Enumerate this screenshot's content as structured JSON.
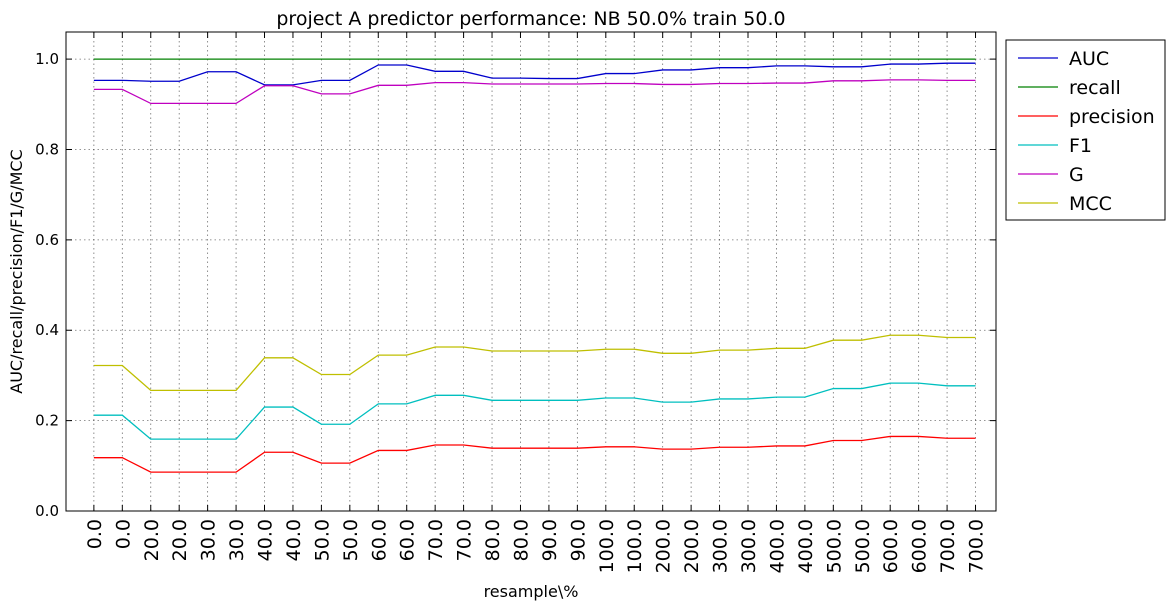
{
  "chart_data": {
    "type": "line",
    "title": "project A predictor performance: NB 50.0% train 50.0",
    "xlabel": "resample\\%",
    "ylabel": "AUC/recall/precision/F1/G/MCC",
    "ylim": [
      0.0,
      1.06
    ],
    "yticks": [
      "0.0",
      "0.2",
      "0.4",
      "0.6",
      "0.8",
      "1.0"
    ],
    "categories": [
      "0.0",
      "0.0",
      "20.0",
      "20.0",
      "30.0",
      "30.0",
      "40.0",
      "40.0",
      "50.0",
      "50.0",
      "60.0",
      "60.0",
      "70.0",
      "70.0",
      "80.0",
      "80.0",
      "90.0",
      "90.0",
      "100.0",
      "100.0",
      "200.0",
      "200.0",
      "300.0",
      "300.0",
      "400.0",
      "400.0",
      "500.0",
      "500.0",
      "600.0",
      "600.0",
      "700.0",
      "700.0"
    ],
    "grid": true,
    "legend_position": "outside-right-top",
    "series": [
      {
        "name": "AUC",
        "color": "#0000cc",
        "values": [
          0.953,
          0.953,
          0.951,
          0.951,
          0.972,
          0.972,
          0.943,
          0.943,
          0.953,
          0.953,
          0.987,
          0.987,
          0.973,
          0.973,
          0.958,
          0.958,
          0.957,
          0.957,
          0.968,
          0.968,
          0.976,
          0.976,
          0.981,
          0.981,
          0.985,
          0.985,
          0.983,
          0.983,
          0.989,
          0.989,
          0.991,
          0.991
        ]
      },
      {
        "name": "recall",
        "color": "#008000",
        "values": [
          1.0,
          1.0,
          1.0,
          1.0,
          1.0,
          1.0,
          1.0,
          1.0,
          1.0,
          1.0,
          1.0,
          1.0,
          1.0,
          1.0,
          1.0,
          1.0,
          1.0,
          1.0,
          1.0,
          1.0,
          1.0,
          1.0,
          1.0,
          1.0,
          1.0,
          1.0,
          1.0,
          1.0,
          1.0,
          1.0,
          1.0,
          1.0
        ]
      },
      {
        "name": "precision",
        "color": "#ff0000",
        "values": [
          0.118,
          0.118,
          0.086,
          0.086,
          0.086,
          0.086,
          0.13,
          0.13,
          0.106,
          0.106,
          0.134,
          0.134,
          0.146,
          0.146,
          0.139,
          0.139,
          0.139,
          0.139,
          0.142,
          0.142,
          0.137,
          0.137,
          0.141,
          0.141,
          0.144,
          0.144,
          0.156,
          0.156,
          0.165,
          0.165,
          0.161,
          0.161
        ]
      },
      {
        "name": "F1",
        "color": "#00bfbf",
        "values": [
          0.212,
          0.212,
          0.159,
          0.159,
          0.159,
          0.159,
          0.23,
          0.23,
          0.192,
          0.192,
          0.237,
          0.237,
          0.256,
          0.256,
          0.245,
          0.245,
          0.245,
          0.245,
          0.25,
          0.25,
          0.241,
          0.241,
          0.248,
          0.248,
          0.252,
          0.252,
          0.271,
          0.271,
          0.283,
          0.283,
          0.277,
          0.277
        ]
      },
      {
        "name": "G",
        "color": "#bf00bf",
        "values": [
          0.933,
          0.933,
          0.902,
          0.902,
          0.902,
          0.902,
          0.941,
          0.941,
          0.923,
          0.923,
          0.942,
          0.942,
          0.948,
          0.948,
          0.945,
          0.945,
          0.945,
          0.945,
          0.946,
          0.946,
          0.944,
          0.944,
          0.946,
          0.946,
          0.947,
          0.947,
          0.952,
          0.952,
          0.954,
          0.954,
          0.953,
          0.953
        ]
      },
      {
        "name": "MCC",
        "color": "#bfbf00",
        "values": [
          0.322,
          0.322,
          0.267,
          0.267,
          0.267,
          0.267,
          0.339,
          0.339,
          0.302,
          0.302,
          0.345,
          0.345,
          0.363,
          0.363,
          0.354,
          0.354,
          0.354,
          0.354,
          0.358,
          0.358,
          0.349,
          0.349,
          0.356,
          0.356,
          0.36,
          0.36,
          0.378,
          0.378,
          0.389,
          0.389,
          0.384,
          0.384
        ]
      }
    ]
  }
}
